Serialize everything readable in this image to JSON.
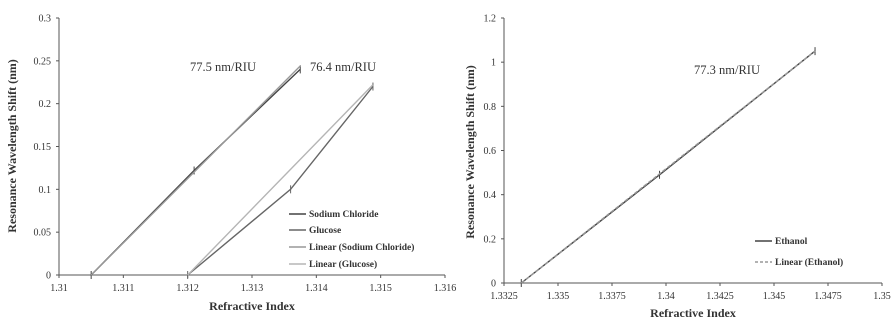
{
  "chart_data": [
    {
      "type": "line",
      "xlabel": "Refractive Index",
      "ylabel": "Resonance Wavelength Shift (nm)",
      "xlim": [
        1.31,
        1.316
      ],
      "ylim": [
        0,
        0.3
      ],
      "xticks": [
        "1.31",
        "1.311",
        "1.312",
        "1.313",
        "1.314",
        "1.315",
        "1.316"
      ],
      "yticks": [
        "0",
        "0.05",
        "0.1",
        "0.15",
        "0.2",
        "0.25",
        "0.3"
      ],
      "grid": false,
      "legend_position": "lower-right",
      "series": [
        {
          "name": "Sodium Chloride",
          "color": "#444444",
          "x": [
            1.3105,
            1.3121,
            1.31375
          ],
          "y": [
            0,
            0.122,
            0.24
          ]
        },
        {
          "name": "Glucose",
          "color": "#666666",
          "x": [
            1.312,
            1.3136,
            1.31488
          ],
          "y": [
            0,
            0.1,
            0.22
          ]
        },
        {
          "name": "Linear (Sodium Chloride)",
          "color": "#999999",
          "dashed": false,
          "x": [
            1.3105,
            1.31375
          ],
          "y": [
            0,
            0.244
          ]
        },
        {
          "name": "Linear (Glucose)",
          "color": "#b5b5b5",
          "dashed": false,
          "x": [
            1.312,
            1.31488
          ],
          "y": [
            0,
            0.222
          ]
        }
      ],
      "annotations": [
        "77.5 nm/RIU",
        "76.4 nm/RIU"
      ]
    },
    {
      "type": "line",
      "xlabel": "Refractive Index",
      "ylabel": "Resonance Wavelength Shift (nm)",
      "xlim": [
        1.3325,
        1.35
      ],
      "ylim": [
        0,
        1.2
      ],
      "xticks": [
        "1.3325",
        "1.335",
        "1.3375",
        "1.34",
        "1.3425",
        "1.345",
        "1.3475",
        "1.35"
      ],
      "yticks": [
        "0",
        "0.2",
        "0.4",
        "0.6",
        "0.8",
        "1",
        "1.2"
      ],
      "grid": false,
      "legend_position": "lower-right",
      "series": [
        {
          "name": "Ethanol",
          "color": "#444444",
          "x": [
            1.3333,
            1.3397,
            1.3469
          ],
          "y": [
            0,
            0.49,
            1.05
          ]
        },
        {
          "name": "Linear (Ethanol)",
          "color": "#999999",
          "dashed": true,
          "x": [
            1.3333,
            1.3469
          ],
          "y": [
            0,
            1.05
          ]
        }
      ],
      "annotations": [
        "77.3 nm/RIU"
      ]
    }
  ]
}
